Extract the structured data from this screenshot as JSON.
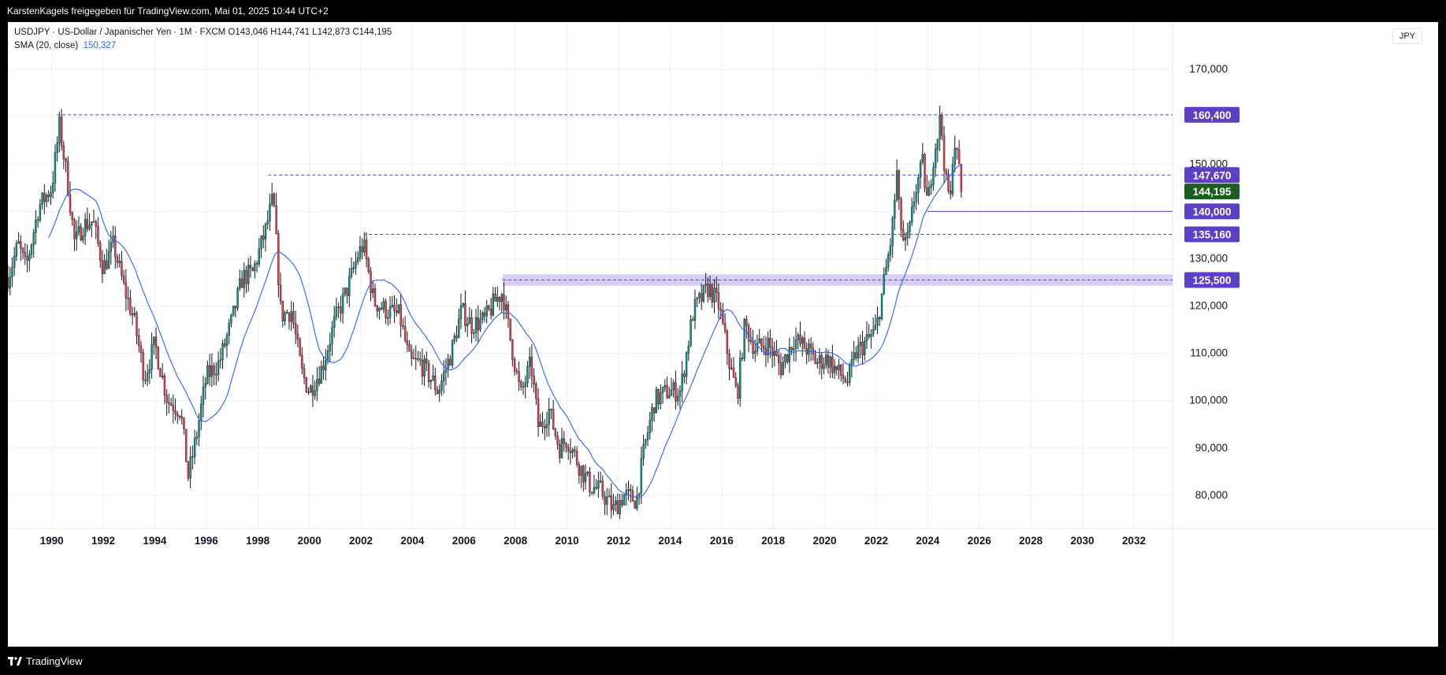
{
  "header": {
    "share_text": "KarstenKagels freigegeben für TradingView.com, Mai 01, 2025 10:44 UTC+2"
  },
  "legend": {
    "line1": "USDJPY · US-Dollar / Japanischer Yen · 1M · FXCM  O143,046  H144,741  L142,873  C144,195",
    "line2_label": "SMA (20, close)",
    "line2_value": "150,327"
  },
  "currency": "JPY",
  "footer": {
    "brand": "TradingView"
  },
  "colors": {
    "up": "#089981",
    "down": "#f23645",
    "sma": "#2962ff",
    "level": "#5b3fc4",
    "zone": "#d1c4f5",
    "close": "#1b5e20"
  },
  "chart_data": {
    "type": "candlestick",
    "symbol": "USDJPY",
    "interval": "1M",
    "ylim": [
      73,
      180
    ],
    "xlim": [
      1988.3,
      2033.5
    ],
    "y_ticks": [
      80,
      90,
      100,
      110,
      120,
      130,
      140,
      150,
      160,
      170
    ],
    "y_tick_labels": [
      "80,000",
      "90,000",
      "100,000",
      "110,000",
      "120,000",
      "130,000",
      "140,000",
      "150,000",
      "160,000",
      "170,000"
    ],
    "x_ticks": [
      1990,
      1992,
      1994,
      1996,
      1998,
      2000,
      2002,
      2004,
      2006,
      2008,
      2010,
      2012,
      2014,
      2016,
      2018,
      2020,
      2022,
      2024,
      2026,
      2028,
      2030,
      2032
    ],
    "x_tick_labels": [
      "1990",
      "1992",
      "1994",
      "1996",
      "1998",
      "2000",
      "2002",
      "2004",
      "2006",
      "2008",
      "2010",
      "2012",
      "2014",
      "2016",
      "2018",
      "2020",
      "2022",
      "2024",
      "2026",
      "2028",
      "2030",
      "2032"
    ],
    "price_path": [
      [
        1988.3,
        126
      ],
      [
        1988.7,
        133
      ],
      [
        1989.0,
        128
      ],
      [
        1989.5,
        141
      ],
      [
        1990.0,
        145
      ],
      [
        1990.3,
        158
      ],
      [
        1990.6,
        147
      ],
      [
        1990.9,
        133
      ],
      [
        1991.2,
        137
      ],
      [
        1991.6,
        138
      ],
      [
        1992.0,
        128
      ],
      [
        1992.4,
        133
      ],
      [
        1992.8,
        124
      ],
      [
        1993.2,
        117
      ],
      [
        1993.6,
        105
      ],
      [
        1994.0,
        112
      ],
      [
        1994.5,
        100
      ],
      [
        1995.0,
        98
      ],
      [
        1995.3,
        84
      ],
      [
        1995.6,
        92
      ],
      [
        1996.0,
        105
      ],
      [
        1996.5,
        108
      ],
      [
        1997.0,
        117
      ],
      [
        1997.4,
        126
      ],
      [
        1997.8,
        127
      ],
      [
        1998.3,
        136
      ],
      [
        1998.6,
        143
      ],
      [
        1998.9,
        118
      ],
      [
        1999.3,
        119
      ],
      [
        1999.7,
        106
      ],
      [
        2000.0,
        102
      ],
      [
        2000.5,
        107
      ],
      [
        2001.0,
        117
      ],
      [
        2001.5,
        124
      ],
      [
        2001.9,
        131
      ],
      [
        2002.1,
        133
      ],
      [
        2002.5,
        121
      ],
      [
        2003.0,
        119
      ],
      [
        2003.5,
        118
      ],
      [
        2003.9,
        108
      ],
      [
        2004.3,
        108
      ],
      [
        2004.8,
        104
      ],
      [
        2005.0,
        102
      ],
      [
        2005.5,
        110
      ],
      [
        2005.9,
        119
      ],
      [
        2006.3,
        116
      ],
      [
        2006.8,
        117
      ],
      [
        2007.2,
        121
      ],
      [
        2007.5,
        123
      ],
      [
        2007.8,
        113
      ],
      [
        2008.2,
        101
      ],
      [
        2008.6,
        108
      ],
      [
        2008.9,
        94
      ],
      [
        2009.3,
        98
      ],
      [
        2009.7,
        90
      ],
      [
        2010.0,
        92
      ],
      [
        2010.5,
        86
      ],
      [
        2010.9,
        82
      ],
      [
        2011.3,
        81
      ],
      [
        2011.8,
        77
      ],
      [
        2012.2,
        80
      ],
      [
        2012.7,
        79
      ],
      [
        2013.0,
        90
      ],
      [
        2013.4,
        100
      ],
      [
        2013.9,
        102
      ],
      [
        2014.4,
        102
      ],
      [
        2014.9,
        119
      ],
      [
        2015.5,
        124
      ],
      [
        2015.9,
        120
      ],
      [
        2016.3,
        108
      ],
      [
        2016.6,
        101
      ],
      [
        2016.9,
        116
      ],
      [
        2017.3,
        111
      ],
      [
        2017.8,
        112
      ],
      [
        2018.3,
        107
      ],
      [
        2018.8,
        113
      ],
      [
        2019.3,
        111
      ],
      [
        2019.7,
        108
      ],
      [
        2020.1,
        109
      ],
      [
        2020.5,
        106
      ],
      [
        2020.9,
        104
      ],
      [
        2021.2,
        110
      ],
      [
        2021.7,
        113
      ],
      [
        2022.0,
        115
      ],
      [
        2022.3,
        125
      ],
      [
        2022.6,
        135
      ],
      [
        2022.8,
        148
      ],
      [
        2022.9,
        139
      ],
      [
        2023.1,
        132
      ],
      [
        2023.3,
        136
      ],
      [
        2023.5,
        144
      ],
      [
        2023.8,
        150
      ],
      [
        2024.0,
        141
      ],
      [
        2024.2,
        151
      ],
      [
        2024.5,
        160
      ],
      [
        2024.7,
        146
      ],
      [
        2024.9,
        142
      ],
      [
        2025.0,
        157
      ],
      [
        2025.1,
        152
      ],
      [
        2025.2,
        150
      ],
      [
        2025.33,
        144.195
      ]
    ],
    "sma_label": "SMA (20, close)",
    "sma_value": 150.327,
    "levels": [
      {
        "value": 160.4,
        "label": "160,400",
        "x_start": 1990.2,
        "style": "dashed"
      },
      {
        "value": 147.67,
        "label": "147,670",
        "x_start": 1998.4,
        "style": "dashed"
      },
      {
        "value": 135.16,
        "label": "135,160",
        "x_start": 2002.1,
        "style": "dashed"
      },
      {
        "value": 140.0,
        "label": "140,000",
        "x_start": 2024.0,
        "style": "solid"
      }
    ],
    "zone": {
      "from": 124.3,
      "to": 126.7,
      "label": "125,500",
      "label_value": 125.5,
      "x_start": 2007.5
    },
    "last_close": {
      "value": 144.195,
      "label": "144,195"
    }
  }
}
